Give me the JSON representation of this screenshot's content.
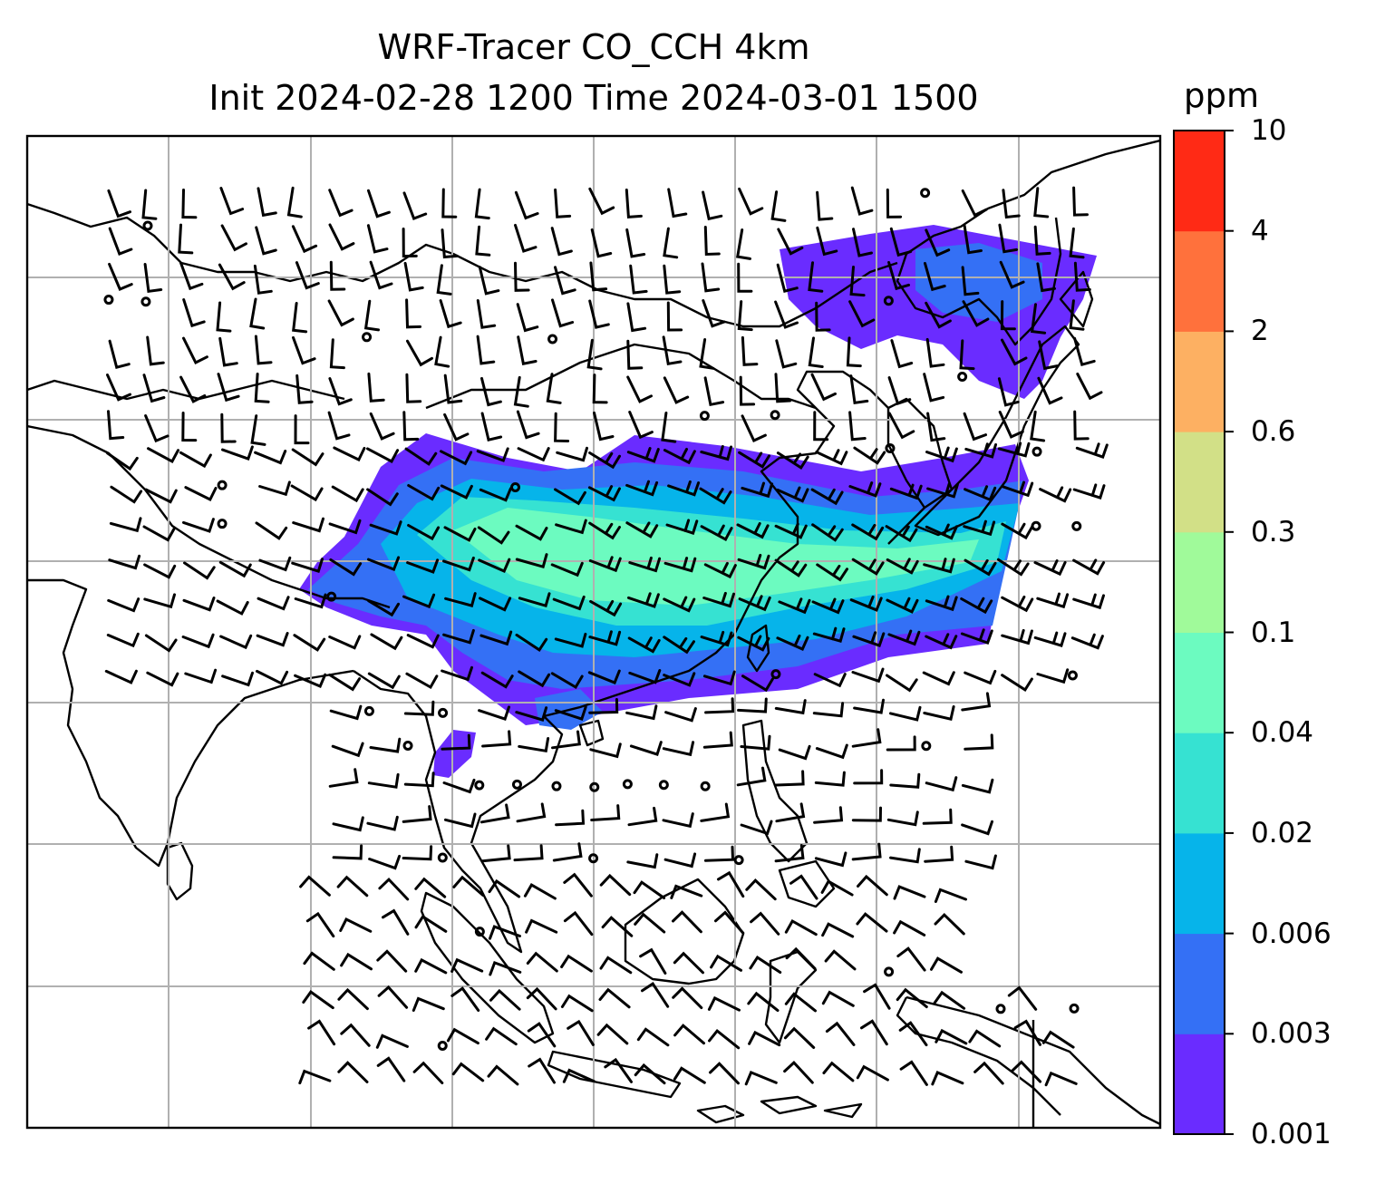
{
  "title": {
    "line1": "WRF-Tracer CO_CCH 4km",
    "line2": "Init 2024-02-28 1200 Time 2024-03-01 1500"
  },
  "colorbar": {
    "unit": "ppm",
    "levels": [
      "0.001",
      "0.003",
      "0.006",
      "0.02",
      "0.04",
      "0.1",
      "0.3",
      "0.6",
      "2",
      "4",
      "10"
    ],
    "colors": [
      "#6a2cff",
      "#3470f5",
      "#06b4ea",
      "#36e2d2",
      "#6cfbc0",
      "#a0fa9a",
      "#d2e087",
      "#fdb062",
      "#ff713c",
      "#ff2a15"
    ]
  },
  "map": {
    "frame_color": "#000000",
    "grid_color": "#b0b0b0",
    "coastline_color": "#000000",
    "wind_barb_color": "#000000",
    "plume_colors": {
      "outer": "#6a2cff",
      "mid": "#3470f5",
      "inner": "#06b4ea",
      "core_edge": "#36e2d2",
      "core": "#6cfbc0"
    }
  }
}
